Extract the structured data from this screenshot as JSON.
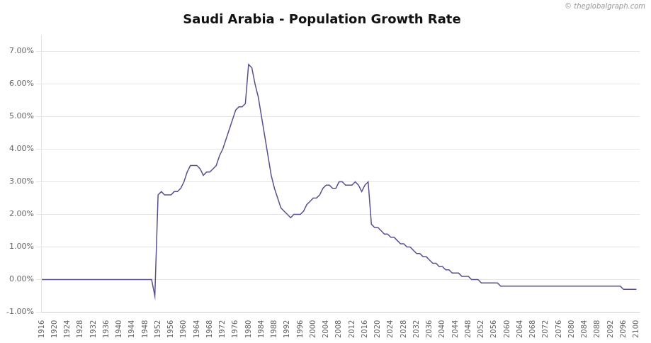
{
  "chart_data": {
    "type": "line",
    "title": "Saudi Arabia - Population Growth Rate",
    "annotations": [
      "© theglobalgraph.com"
    ],
    "color": "#5b4e8e",
    "grid": true,
    "xlim": [
      1916,
      2101
    ],
    "xticks": [
      1916,
      1920,
      1924,
      1928,
      1932,
      1936,
      1940,
      1944,
      1948,
      1952,
      1956,
      1960,
      1964,
      1968,
      1972,
      1976,
      1980,
      1984,
      1988,
      1992,
      1996,
      2000,
      2004,
      2008,
      2012,
      2016,
      2020,
      2024,
      2028,
      2032,
      2036,
      2040,
      2044,
      2048,
      2052,
      2056,
      2060,
      2064,
      2068,
      2072,
      2076,
      2080,
      2084,
      2088,
      2092,
      2096,
      2100
    ],
    "ylim": [
      -0.01,
      0.075
    ],
    "yticks": [
      {
        "value": -0.01,
        "label": "-1.00%"
      },
      {
        "value": 0.0,
        "label": "0.00%"
      },
      {
        "value": 0.01,
        "label": "1.00%"
      },
      {
        "value": 0.02,
        "label": "2.00%"
      },
      {
        "value": 0.03,
        "label": "3.00%"
      },
      {
        "value": 0.04,
        "label": "4.00%"
      },
      {
        "value": 0.05,
        "label": "5.00%"
      },
      {
        "value": 0.06,
        "label": "6.00%"
      },
      {
        "value": 0.07,
        "label": "7.00%"
      }
    ],
    "x": [
      1916,
      1917,
      1918,
      1919,
      1920,
      1921,
      1922,
      1923,
      1924,
      1925,
      1926,
      1927,
      1928,
      1929,
      1930,
      1931,
      1932,
      1933,
      1934,
      1935,
      1936,
      1937,
      1938,
      1939,
      1940,
      1941,
      1942,
      1943,
      1944,
      1945,
      1946,
      1947,
      1948,
      1949,
      1950,
      1951,
      1952,
      1953,
      1954,
      1955,
      1956,
      1957,
      1958,
      1959,
      1960,
      1961,
      1962,
      1963,
      1964,
      1965,
      1966,
      1967,
      1968,
      1969,
      1970,
      1971,
      1972,
      1973,
      1974,
      1975,
      1976,
      1977,
      1978,
      1979,
      1980,
      1981,
      1982,
      1983,
      1984,
      1985,
      1986,
      1987,
      1988,
      1989,
      1990,
      1991,
      1992,
      1993,
      1994,
      1995,
      1996,
      1997,
      1998,
      1999,
      2000,
      2001,
      2002,
      2003,
      2004,
      2005,
      2006,
      2007,
      2008,
      2009,
      2010,
      2011,
      2012,
      2013,
      2014,
      2015,
      2016,
      2017,
      2018,
      2019,
      2020,
      2021,
      2022,
      2023,
      2024,
      2025,
      2026,
      2027,
      2028,
      2029,
      2030,
      2031,
      2032,
      2033,
      2034,
      2035,
      2036,
      2037,
      2038,
      2039,
      2040,
      2041,
      2042,
      2043,
      2044,
      2045,
      2046,
      2047,
      2048,
      2049,
      2050,
      2051,
      2052,
      2053,
      2054,
      2055,
      2056,
      2057,
      2058,
      2059,
      2060,
      2061,
      2062,
      2063,
      2064,
      2065,
      2066,
      2067,
      2068,
      2069,
      2070,
      2071,
      2072,
      2073,
      2074,
      2075,
      2076,
      2077,
      2078,
      2079,
      2080,
      2081,
      2082,
      2083,
      2084,
      2085,
      2086,
      2087,
      2088,
      2089,
      2090,
      2091,
      2092,
      2093,
      2094,
      2095,
      2096,
      2097,
      2098,
      2099,
      2100
    ],
    "values": [
      0.0,
      0.0,
      0.0,
      0.0,
      0.0,
      0.0,
      0.0,
      0.0,
      0.0,
      0.0,
      0.0,
      0.0,
      0.0,
      0.0,
      0.0,
      0.0,
      0.0,
      0.0,
      0.0,
      0.0,
      0.0,
      0.0,
      0.0,
      0.0,
      0.0,
      0.0,
      0.0,
      0.0,
      0.0,
      0.0,
      0.0,
      0.0,
      0.0,
      0.0,
      0.0,
      -0.005,
      0.026,
      0.027,
      0.026,
      0.026,
      0.026,
      0.027,
      0.027,
      0.028,
      0.03,
      0.033,
      0.035,
      0.035,
      0.035,
      0.034,
      0.032,
      0.033,
      0.033,
      0.034,
      0.035,
      0.038,
      0.04,
      0.043,
      0.046,
      0.049,
      0.052,
      0.053,
      0.053,
      0.054,
      0.066,
      0.065,
      0.06,
      0.056,
      0.05,
      0.044,
      0.038,
      0.032,
      0.028,
      0.025,
      0.022,
      0.021,
      0.02,
      0.019,
      0.02,
      0.02,
      0.02,
      0.021,
      0.023,
      0.024,
      0.025,
      0.025,
      0.026,
      0.028,
      0.029,
      0.029,
      0.028,
      0.028,
      0.03,
      0.03,
      0.029,
      0.029,
      0.029,
      0.03,
      0.029,
      0.027,
      0.029,
      0.03,
      0.017,
      0.016,
      0.016,
      0.015,
      0.014,
      0.014,
      0.013,
      0.013,
      0.012,
      0.011,
      0.011,
      0.01,
      0.01,
      0.009,
      0.008,
      0.008,
      0.007,
      0.007,
      0.006,
      0.005,
      0.005,
      0.004,
      0.004,
      0.003,
      0.003,
      0.002,
      0.002,
      0.002,
      0.001,
      0.001,
      0.001,
      0.0,
      0.0,
      0.0,
      -0.001,
      -0.001,
      -0.001,
      -0.001,
      -0.001,
      -0.001,
      -0.002,
      -0.002,
      -0.002,
      -0.002,
      -0.002,
      -0.002,
      -0.002,
      -0.002,
      -0.002,
      -0.002,
      -0.002,
      -0.002,
      -0.002,
      -0.002,
      -0.002,
      -0.002,
      -0.002,
      -0.002,
      -0.002,
      -0.002,
      -0.002,
      -0.002,
      -0.002,
      -0.002,
      -0.002,
      -0.002,
      -0.002,
      -0.002,
      -0.002,
      -0.002,
      -0.002,
      -0.002,
      -0.002,
      -0.002,
      -0.002,
      -0.002,
      -0.002,
      -0.002,
      -0.003,
      -0.003,
      -0.003,
      -0.003,
      -0.003
    ]
  }
}
